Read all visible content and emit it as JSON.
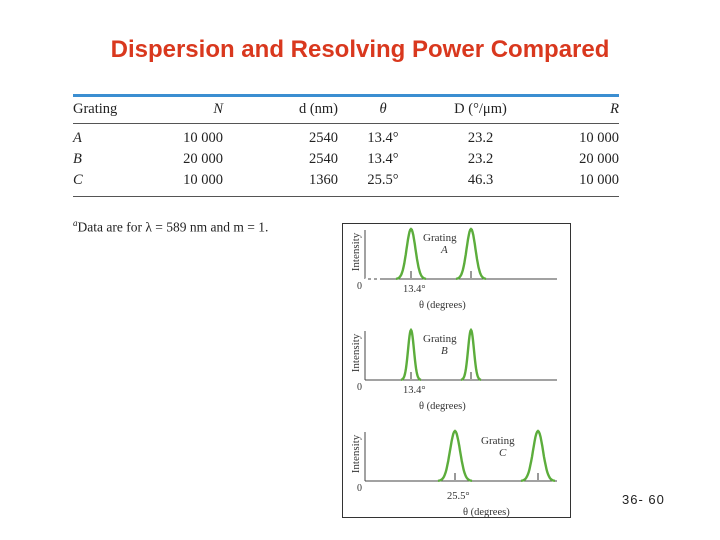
{
  "slide": {
    "title": "Dispersion and Resolving Power Compared",
    "page_number": "36- 60"
  },
  "table": {
    "headers": [
      "Grating",
      "N",
      "d (nm)",
      "θ",
      "D (°/μm)",
      "R"
    ],
    "rows": [
      [
        "A",
        "10 000",
        "2540",
        "13.4°",
        "23.2",
        "10 000"
      ],
      [
        "B",
        "20 000",
        "2540",
        "13.4°",
        "23.2",
        "20 000"
      ],
      [
        "C",
        "10 000",
        "1360",
        "25.5°",
        "46.3",
        "10 000"
      ]
    ],
    "footnote": {
      "marker": "a",
      "text": "Data are for λ = 589 nm and m = 1."
    }
  },
  "figure": {
    "line_color": "#5cad3c",
    "y_label": "Intensity",
    "zero_label": "0",
    "x_label": "θ (degrees)",
    "panels": [
      {
        "grating_word": "Grating",
        "grating_letter": "A",
        "angle_label": "13.4°"
      },
      {
        "grating_word": "Grating",
        "grating_letter": "B",
        "angle_label": "13.4°"
      },
      {
        "grating_word": "Grating",
        "grating_letter": "C",
        "angle_label": "25.5°"
      }
    ]
  }
}
